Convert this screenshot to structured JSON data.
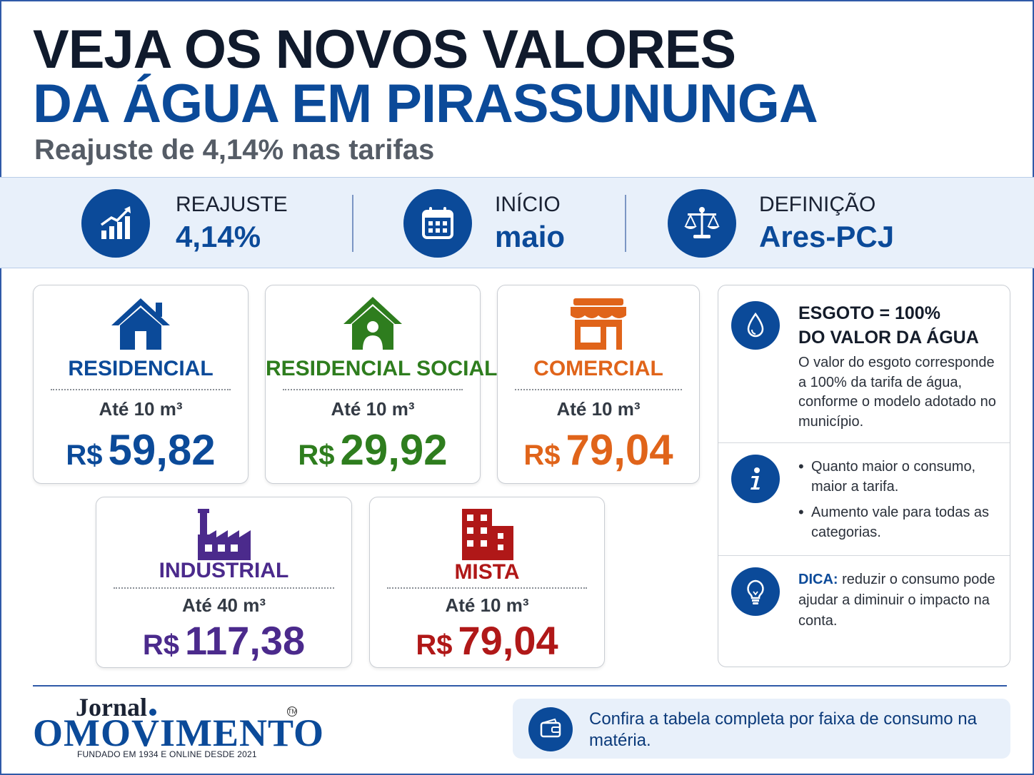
{
  "header": {
    "title_line1": "VEJA OS NOVOS VALORES",
    "title_line2": "DA ÁGUA EM PIRASSUNUNGA",
    "subtitle": "Reajuste de 4,14% nas tarifas"
  },
  "highlights": [
    {
      "label": "REAJUSTE",
      "value": "4,14%",
      "icon": "growth-chart-icon"
    },
    {
      "label": "INÍCIO",
      "value": "maio",
      "icon": "calendar-icon"
    },
    {
      "label": "DEFINIÇÃO",
      "value": "Ares-PCJ",
      "icon": "scales-icon"
    }
  ],
  "categories": [
    {
      "name": "RESIDENCIAL",
      "qty": "Até 10 m³",
      "currency": "R$",
      "price": "59,82",
      "color": "#0b4a99",
      "icon": "house-icon"
    },
    {
      "name": "RESIDENCIAL SOCIAL",
      "qty": "Até 10 m³",
      "currency": "R$",
      "price": "29,92",
      "color": "#2e7d1e",
      "icon": "house-person-icon"
    },
    {
      "name": "COMERCIAL",
      "qty": "Até 10 m³",
      "currency": "R$",
      "price": "79,04",
      "color": "#e0641a",
      "icon": "storefront-icon"
    },
    {
      "name": "INDUSTRIAL",
      "qty": "Até 40 m³",
      "currency": "R$",
      "price": "117,38",
      "color": "#4b2a8c",
      "icon": "factory-icon"
    },
    {
      "name": "MISTA",
      "qty": "Até 10 m³",
      "currency": "R$",
      "price": "79,04",
      "color": "#b01818",
      "icon": "buildings-icon"
    }
  ],
  "sidebar": {
    "sewage": {
      "title_line1": "ESGOTO = 100%",
      "title_line2": "DO VALOR DA ÁGUA",
      "text": "O valor do esgoto corresponde a 100% da tarifa de água, conforme o modelo adotado no município.",
      "icon": "water-drop-icon"
    },
    "info": {
      "bullets": [
        "Quanto maior o consumo, maior a tarifa.",
        "Aumento vale para todas as categorias."
      ],
      "icon": "info-icon"
    },
    "tip": {
      "label": "DICA:",
      "text": " reduzir o consumo pode ajudar a diminuir o impacto na conta.",
      "icon": "lightbulb-icon"
    }
  },
  "footer": {
    "logo_top": "Jornal",
    "logo_main": "OMOVIMENTO",
    "logo_tm": "TM",
    "logo_sub": "FUNDADO EM 1934 E ONLINE DESDE 2021",
    "note": "Confira a tabela completa por faixa de consumo na matéria.",
    "note_icon": "wallet-icon"
  },
  "colors": {
    "primary": "#0b4a99",
    "band_bg": "#e8f0fa"
  }
}
